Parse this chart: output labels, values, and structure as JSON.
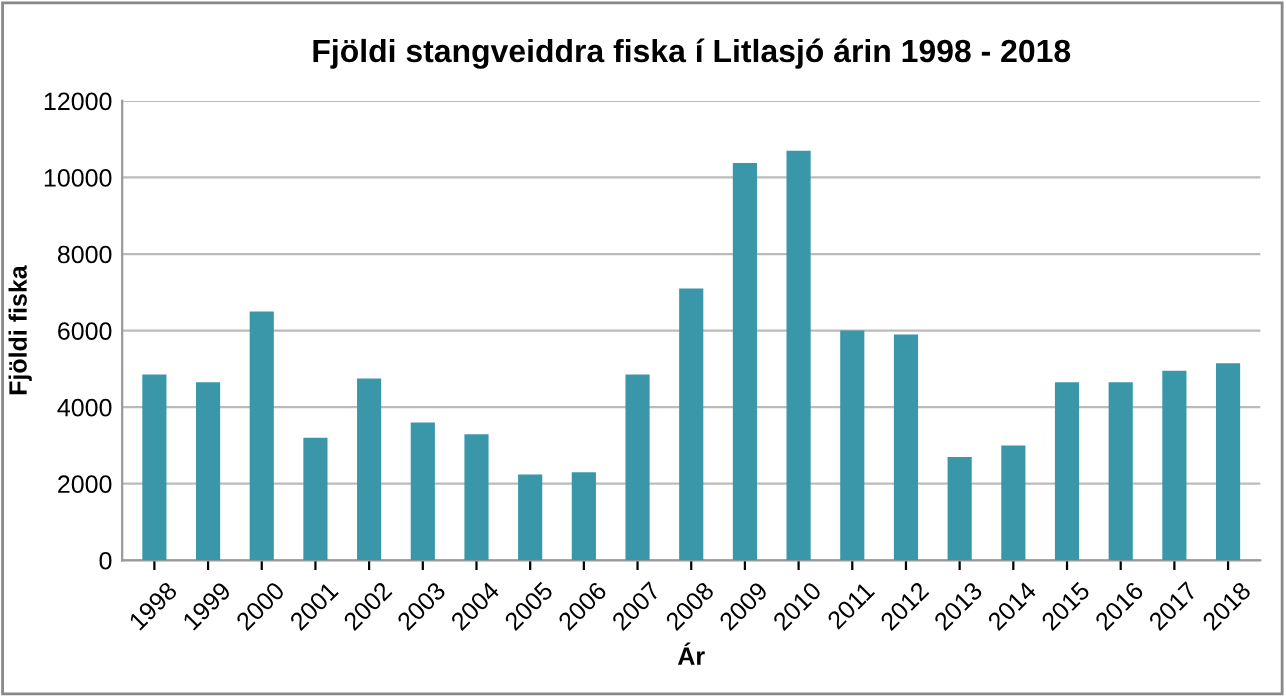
{
  "chart_data": {
    "type": "bar",
    "title": "Fjöldi stangveiddra fiska í Litlasjó árin 1998 - 2018",
    "xlabel": "Ár",
    "ylabel": "Fjöldi fiska",
    "categories": [
      "1998",
      "1999",
      "2000",
      "2001",
      "2002",
      "2003",
      "2004",
      "2005",
      "2006",
      "2007",
      "2008",
      "2009",
      "2010",
      "2011",
      "2012",
      "2013",
      "2014",
      "2015",
      "2016",
      "2017",
      "2018"
    ],
    "values": [
      4850,
      4650,
      6500,
      3200,
      4750,
      3600,
      3290,
      2240,
      2300,
      4850,
      7100,
      10380,
      10700,
      6000,
      5900,
      2700,
      3000,
      4650,
      4650,
      4950,
      5150
    ],
    "color": "#3a97a9",
    "ylim": [
      0,
      12000
    ],
    "yticks": [
      0,
      2000,
      4000,
      6000,
      8000,
      10000,
      12000
    ],
    "grid": "y",
    "legend": false
  }
}
